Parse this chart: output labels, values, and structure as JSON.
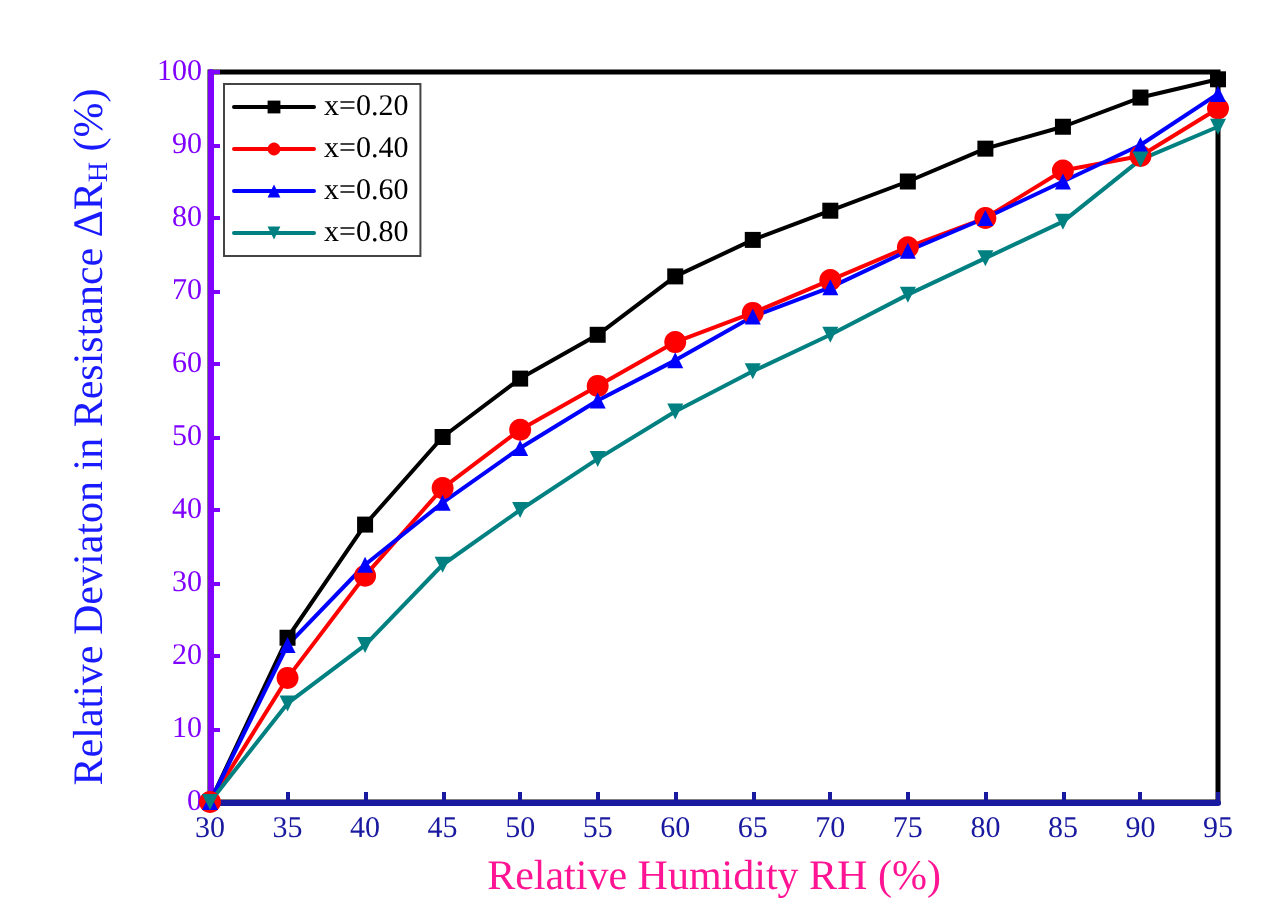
{
  "chart_data": {
    "type": "line",
    "xlabel": "Relative Humidity RH (%)",
    "ylabel": "Relative Deviaton in Resistance ΔR$_{H}$ (%)",
    "x": [
      30,
      35,
      40,
      45,
      50,
      55,
      60,
      65,
      70,
      75,
      80,
      85,
      90,
      95
    ],
    "series": [
      {
        "name": "x=0.20",
        "color": "#000000",
        "marker": "square",
        "values": [
          0,
          22.5,
          38,
          50,
          58,
          64,
          72,
          77,
          81,
          85,
          89.5,
          92.5,
          96.5,
          99
        ]
      },
      {
        "name": "x=0.40",
        "color": "#ff0000",
        "marker": "circle",
        "values": [
          0,
          17,
          31,
          43,
          51,
          57,
          63,
          67,
          71.5,
          76,
          80,
          86.5,
          88.5,
          95
        ]
      },
      {
        "name": "x=0.60",
        "color": "#0000ff",
        "marker": "triangle",
        "values": [
          0,
          21.5,
          32.5,
          41,
          48.5,
          55,
          60.5,
          66.5,
          70.5,
          75.5,
          80,
          85,
          90,
          97
        ]
      },
      {
        "name": "x=0.80",
        "color": "#008080",
        "marker": "triangle-down",
        "values": [
          0,
          13.5,
          21.5,
          32.5,
          40,
          47,
          53.5,
          59,
          64,
          69.5,
          74.5,
          79.5,
          88,
          92.5
        ]
      }
    ],
    "xlim": [
      30,
      95
    ],
    "xticks": [
      30,
      35,
      40,
      45,
      50,
      55,
      60,
      65,
      70,
      75,
      80,
      85,
      90,
      95
    ],
    "ylim": [
      0,
      100
    ],
    "yticks": [
      0,
      10,
      20,
      30,
      40,
      50,
      60,
      70,
      80,
      90,
      100
    ],
    "legend": "top left",
    "grid": false
  }
}
